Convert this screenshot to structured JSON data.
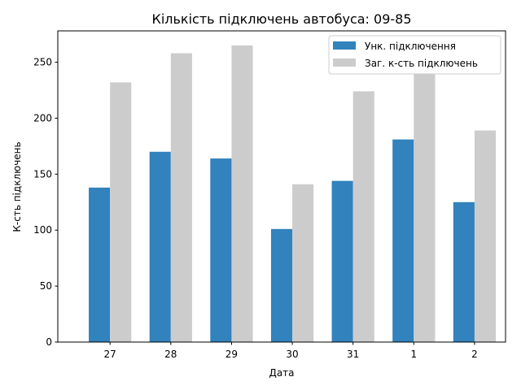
{
  "chart_data": {
    "type": "bar",
    "title": "Кількість підключень автобуса: 09-85",
    "xlabel": "Дата",
    "ylabel": "К-сть підключень",
    "categories": [
      "27",
      "28",
      "29",
      "30",
      "31",
      "1",
      "2"
    ],
    "series": [
      {
        "name": "Унк. підключення",
        "values": [
          138,
          170,
          164,
          101,
          144,
          181,
          125
        ],
        "color": "#3182bd"
      },
      {
        "name": "Заг. к-сть підключень",
        "values": [
          232,
          258,
          265,
          141,
          224,
          240,
          189
        ],
        "color": "#cccccc"
      }
    ],
    "ylim": [
      0,
      278
    ],
    "yticks": [
      0,
      50,
      100,
      150,
      200,
      250
    ],
    "grid": false,
    "legend_position": "top-right"
  }
}
